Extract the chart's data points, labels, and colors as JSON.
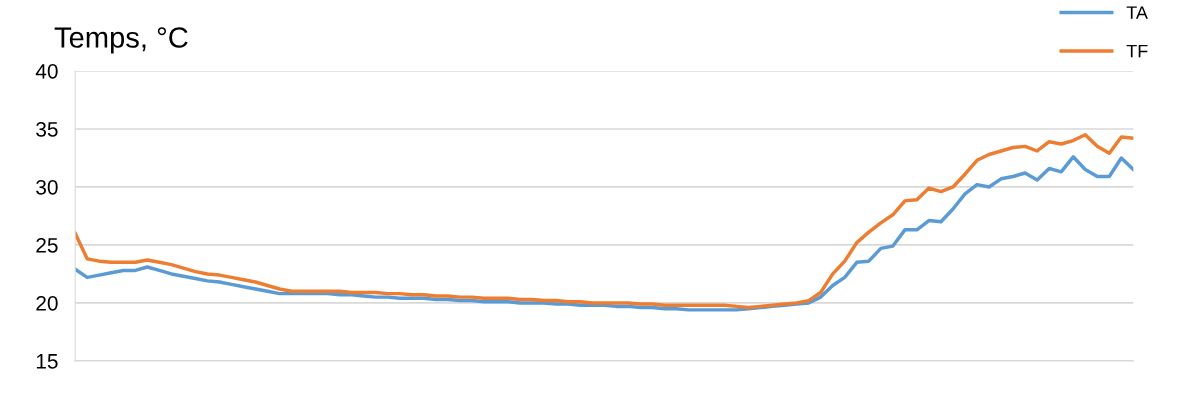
{
  "chart_data": {
    "type": "line",
    "ylabel": "Temps, °C",
    "categories": [
      null,
      null,
      null,
      null,
      null,
      null,
      null,
      null,
      null,
      null,
      null,
      null,
      null,
      null,
      null,
      null,
      null,
      null,
      null,
      null,
      null,
      null,
      null,
      null,
      null,
      null,
      null,
      null,
      null,
      null,
      null,
      null,
      null,
      null,
      null,
      null,
      null,
      null,
      null,
      null,
      null,
      null,
      null,
      null,
      null,
      null,
      null,
      null,
      null,
      null,
      null,
      null,
      null,
      null,
      null,
      null,
      null,
      null,
      null,
      null,
      null,
      null,
      null,
      null,
      null,
      null,
      null,
      null,
      null,
      null,
      null,
      null,
      null,
      null,
      null,
      null,
      null,
      null,
      null,
      null,
      null,
      null,
      null,
      null,
      null,
      null,
      null,
      null,
      null
    ],
    "series": [
      {
        "name": "TA",
        "color": "#5b9bd5",
        "values": [
          22.9,
          22.2,
          22.4,
          22.6,
          22.8,
          22.8,
          23.1,
          22.8,
          22.5,
          22.3,
          22.1,
          21.9,
          21.8,
          21.6,
          21.4,
          21.2,
          21.0,
          20.8,
          20.8,
          20.8,
          20.8,
          20.8,
          20.7,
          20.7,
          20.6,
          20.5,
          20.5,
          20.4,
          20.4,
          20.4,
          20.3,
          20.3,
          20.2,
          20.2,
          20.1,
          20.1,
          20.1,
          20.0,
          20.0,
          20.0,
          19.9,
          19.9,
          19.8,
          19.8,
          19.8,
          19.7,
          19.7,
          19.6,
          19.6,
          19.5,
          19.5,
          19.4,
          19.4,
          19.4,
          19.4,
          19.4,
          19.5,
          19.6,
          19.7,
          19.8,
          19.9,
          20.0,
          20.5,
          21.5,
          22.2,
          23.5,
          23.6,
          24.7,
          24.9,
          26.3,
          26.3,
          27.1,
          27.0,
          28.1,
          29.4,
          30.2,
          30.0,
          30.7,
          30.9,
          31.2,
          30.6,
          31.6,
          31.3,
          32.6,
          31.5,
          30.9,
          30.9,
          32.5,
          31.5
        ]
      },
      {
        "name": "TF",
        "color": "#ed7d31",
        "values": [
          26.0,
          23.8,
          23.6,
          23.5,
          23.5,
          23.5,
          23.7,
          23.5,
          23.3,
          23.0,
          22.7,
          22.5,
          22.4,
          22.2,
          22.0,
          21.8,
          21.5,
          21.2,
          21.0,
          21.0,
          21.0,
          21.0,
          21.0,
          20.9,
          20.9,
          20.9,
          20.8,
          20.8,
          20.7,
          20.7,
          20.6,
          20.6,
          20.5,
          20.5,
          20.4,
          20.4,
          20.4,
          20.3,
          20.3,
          20.2,
          20.2,
          20.1,
          20.1,
          20.0,
          20.0,
          20.0,
          20.0,
          19.9,
          19.9,
          19.8,
          19.8,
          19.8,
          19.8,
          19.8,
          19.8,
          19.7,
          19.6,
          19.7,
          19.8,
          19.9,
          20.0,
          20.2,
          20.9,
          22.5,
          23.6,
          25.2,
          26.1,
          26.9,
          27.6,
          28.8,
          28.9,
          29.9,
          29.6,
          30.0,
          31.1,
          32.3,
          32.8,
          33.1,
          33.4,
          33.5,
          33.1,
          33.9,
          33.7,
          34.0,
          34.5,
          33.5,
          32.9,
          34.3,
          34.2
        ]
      }
    ],
    "ylim": [
      15,
      40
    ],
    "yticks": [
      15,
      20,
      25,
      30,
      35,
      40
    ],
    "grid": "y",
    "legend": "top right",
    "tick_labels": "y",
    "marker": "none",
    "line_style": "solid"
  }
}
